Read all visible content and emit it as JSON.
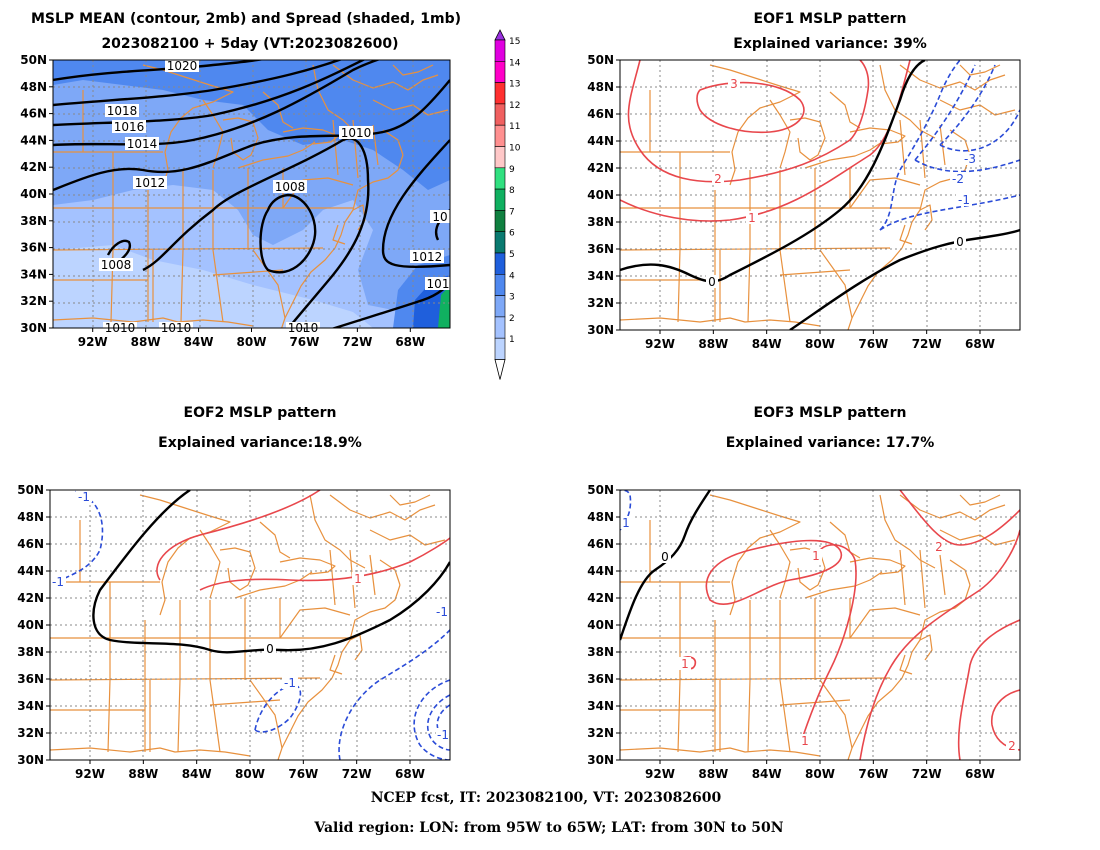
{
  "colors": {
    "coast": "#e8913e",
    "grid": "#888888",
    "positive_contour": "#e8474c",
    "negative_contour": "#2a4bd7",
    "zero_contour": "#000000",
    "spread_1": "#bcd4ff",
    "spread_2": "#a4c2ff",
    "spread_3": "#7ea8f7",
    "spread_4": "#4f88ef",
    "spread_5": "#1f5fdc"
  },
  "axes": {
    "lon_ticks": [
      "92W",
      "88W",
      "84W",
      "80W",
      "76W",
      "72W",
      "68W"
    ],
    "lat_ticks": [
      "50N",
      "48N",
      "46N",
      "44N",
      "42N",
      "40N",
      "38N",
      "36N",
      "34N",
      "32N",
      "30N"
    ]
  },
  "panels": [
    {
      "id": "mslp-mean",
      "title1": "MSLP MEAN (contour, 2mb) and Spread (shaded, 1mb)",
      "title2": "2023082100 + 5day (VT:2023082600)",
      "labels": [
        "1020",
        "1018",
        "1016",
        "1014",
        "1012",
        "1010",
        "1008",
        "1008",
        "1012",
        "101",
        "10",
        "1010",
        "1010",
        "1010"
      ]
    },
    {
      "id": "eof1",
      "title1": "EOF1 MSLP pattern",
      "title2": "Explained variance: 39%",
      "labels": [
        "3",
        "2",
        "1",
        "0",
        "0",
        "-1",
        "-2",
        "-3"
      ]
    },
    {
      "id": "eof2",
      "title1": "EOF2 MSLP pattern",
      "title2": "Explained variance:18.9%",
      "labels": [
        "1",
        "0",
        "-1",
        "-1",
        "-1",
        "-1",
        "-1"
      ]
    },
    {
      "id": "eof3",
      "title1": "EOF3 MSLP pattern",
      "title2": "Explained variance: 17.7%",
      "labels": [
        "1",
        "1",
        "2",
        "1",
        "0",
        "2",
        "1"
      ]
    }
  ],
  "colorbar": {
    "levels": [
      "15",
      "14",
      "13",
      "12",
      "11",
      "10",
      "9",
      "8",
      "7",
      "6",
      "5",
      "4",
      "3",
      "2",
      "1"
    ],
    "colors": [
      "#e000e0",
      "#ff00c8",
      "#ff3030",
      "#f06060",
      "#ff9090",
      "#ffc8c8",
      "#30e080",
      "#10b060",
      "#108040",
      "#0a7a70",
      "#1f5fdc",
      "#4f88ef",
      "#7ea8f7",
      "#a4c2ff",
      "#bcd4ff"
    ],
    "top_arrow_color": "#9a30e0",
    "bottom_arrow_color": "#ffffff"
  },
  "footer": {
    "line1": "NCEP fcst, IT: 2023082100, VT: 2023082600",
    "line2": "Valid region: LON: from 95W to 65W; LAT: from 30N to 50N"
  }
}
